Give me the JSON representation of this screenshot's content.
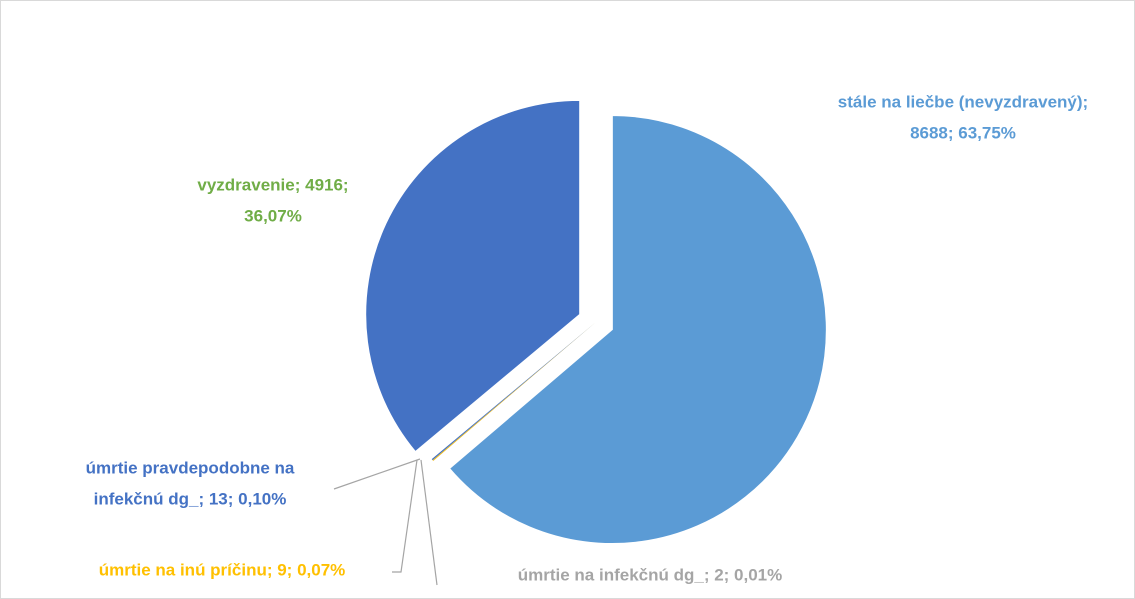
{
  "chart_data": {
    "type": "pie",
    "values": [
      8688,
      2,
      9,
      13,
      4916
    ],
    "value_labels": [
      [
        "stále na liečbe (nevyzdravený);",
        "8688; 63,75%"
      ],
      [
        "úmrtie na infekčnú dg_; 2; 0,01%"
      ],
      [
        "úmrtie na inú príčinu; 9; 0,07%"
      ],
      [
        "úmrtie pravdepodobne na",
        "infekčnú dg_; 13; 0,10%"
      ],
      [
        "vyzdravenie; 4916;",
        "36,07%"
      ]
    ],
    "colors": [
      "#5b9bd5",
      "#a5a5a5",
      "#ffc000",
      "#4472c4",
      "#4472c4"
    ],
    "label_colors": [
      "#5b9bd5",
      "#a5a5a5",
      "#ffc000",
      "#4472c4",
      "#70ad47"
    ]
  }
}
